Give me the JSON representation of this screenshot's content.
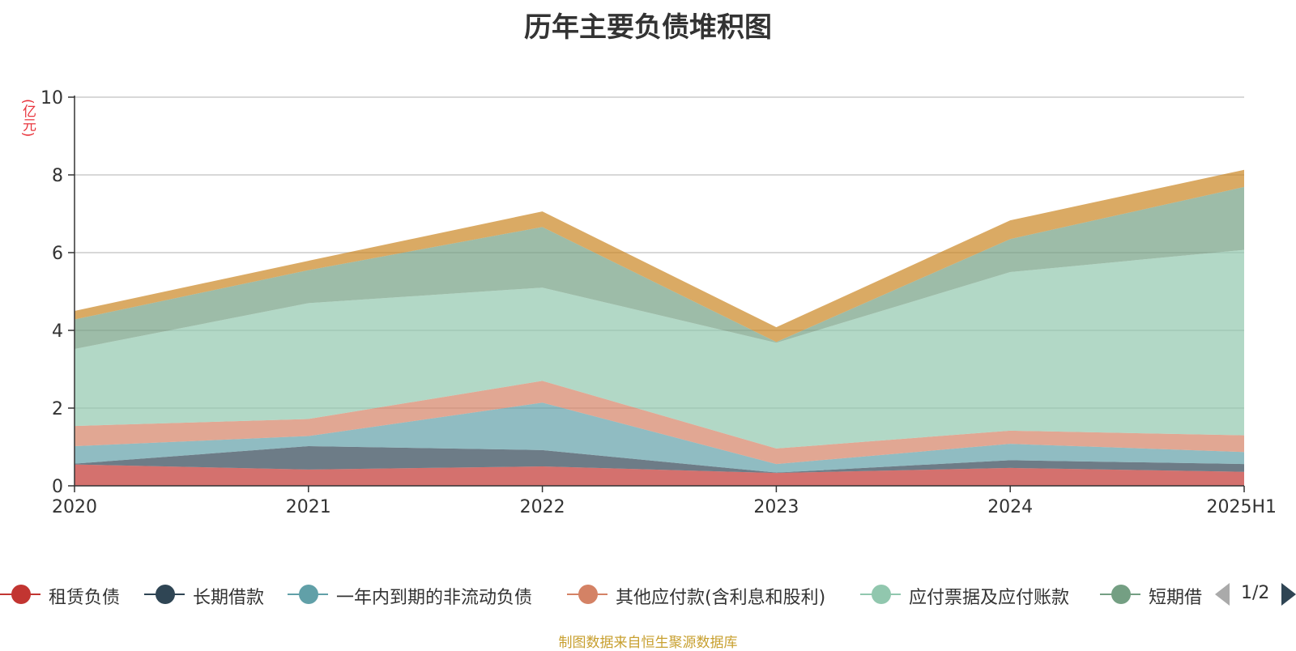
{
  "chart_data": {
    "type": "area",
    "stacked": true,
    "title": "历年主要负债堆积图",
    "unit_label": "(亿元)",
    "categories": [
      "2020",
      "2021",
      "2022",
      "2023",
      "2024",
      "2025H1"
    ],
    "ylim": [
      0,
      10
    ],
    "yticks": [
      "0",
      "2",
      "4",
      "6",
      "8",
      "10"
    ],
    "grid": true,
    "series": [
      {
        "name": "租赁负债",
        "color": "#c23531",
        "values": [
          0.55,
          0.42,
          0.5,
          0.33,
          0.46,
          0.36
        ]
      },
      {
        "name": "长期借款",
        "color": "#2f4554",
        "values": [
          0.02,
          0.6,
          0.42,
          0.01,
          0.2,
          0.2
        ]
      },
      {
        "name": "一年内到期的非流动负债",
        "color": "#61a0a8",
        "values": [
          0.45,
          0.26,
          1.22,
          0.22,
          0.42,
          0.31
        ]
      },
      {
        "name": "其他应付款(含利息和股利)",
        "color": "#d48265",
        "values": [
          0.52,
          0.44,
          0.56,
          0.4,
          0.34,
          0.43
        ]
      },
      {
        "name": "应付票据及应付账款",
        "color": "#91c7ae",
        "values": [
          1.98,
          2.98,
          2.4,
          2.72,
          4.08,
          4.77
        ]
      },
      {
        "name": "短期借款",
        "color": "#749f83",
        "values": [
          0.76,
          0.85,
          1.56,
          0.02,
          0.85,
          1.62
        ]
      },
      {
        "name": "",
        "color": "#ca8622",
        "values": [
          0.22,
          0.24,
          0.4,
          0.38,
          0.48,
          0.44
        ]
      }
    ]
  },
  "legend": {
    "items": [
      "租赁负债",
      "长期借款",
      "一年内到期的非流动负债",
      "其他应付款(含利息和股利)",
      "应付票据及应付账款",
      "短期借"
    ],
    "colors": [
      "#c23531",
      "#2f4554",
      "#61a0a8",
      "#d48265",
      "#91c7ae",
      "#749f83"
    ],
    "page": "1/2"
  },
  "source": "制图数据来自恒生聚源数据库"
}
